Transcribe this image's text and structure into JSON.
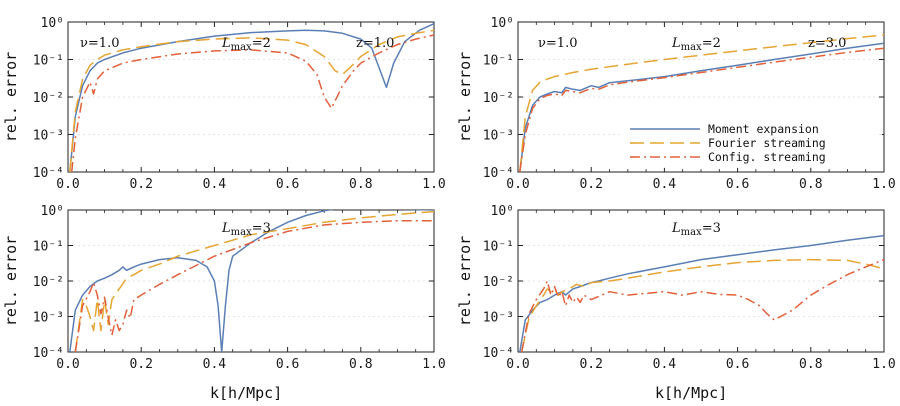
{
  "figure": {
    "xlabel": "k[h/Mpc]",
    "ylabel": "rel. error",
    "colors": {
      "moment": "#5b7fb5",
      "fourier": "#e6a532",
      "config": "#e2603a"
    }
  },
  "chart_data": [
    {
      "type": "line",
      "panel": "top-left",
      "xlim": [
        0.0,
        1.0
      ],
      "ylim": [
        0.0001,
        1
      ],
      "yscale": "log",
      "grid": true,
      "xticks": [
        "0.0",
        "0.2",
        "0.4",
        "0.6",
        "0.8",
        "1.0"
      ],
      "yticks": [
        "10⁻⁴",
        "10⁻³",
        "10⁻²",
        "10⁻¹",
        "10⁰"
      ],
      "ylabel": "rel. error",
      "xlabel": "",
      "annotations": [
        "ν=1.0",
        "Lmax=2",
        "z=1.0"
      ],
      "series": [
        {
          "name": "Moment expansion",
          "style": "solid",
          "color": "#5b7fb5",
          "x": [
            0.005,
            0.02,
            0.04,
            0.06,
            0.08,
            0.1,
            0.15,
            0.2,
            0.3,
            0.4,
            0.5,
            0.6,
            0.65,
            0.7,
            0.75,
            0.8,
            0.83,
            0.85,
            0.87,
            0.89,
            0.92,
            0.96,
            1.0
          ],
          "y": [
            0.0001,
            0.003,
            0.02,
            0.05,
            0.08,
            0.1,
            0.15,
            0.2,
            0.3,
            0.42,
            0.52,
            0.58,
            0.6,
            0.58,
            0.5,
            0.35,
            0.2,
            0.06,
            0.018,
            0.08,
            0.3,
            0.6,
            0.9
          ]
        },
        {
          "name": "Fourier streaming",
          "style": "dashed",
          "color": "#e6a532",
          "x": [
            0.005,
            0.02,
            0.04,
            0.06,
            0.08,
            0.1,
            0.15,
            0.2,
            0.3,
            0.4,
            0.5,
            0.6,
            0.65,
            0.7,
            0.73,
            0.75,
            0.77,
            0.8,
            0.85,
            0.9,
            0.95,
            1.0
          ],
          "y": [
            0.0001,
            0.004,
            0.03,
            0.07,
            0.1,
            0.13,
            0.18,
            0.22,
            0.3,
            0.35,
            0.38,
            0.33,
            0.25,
            0.12,
            0.05,
            0.04,
            0.06,
            0.12,
            0.25,
            0.4,
            0.5,
            0.6
          ]
        },
        {
          "name": "Config. streaming",
          "style": "dashdot",
          "color": "#e2603a",
          "x": [
            0.01,
            0.02,
            0.04,
            0.06,
            0.07,
            0.08,
            0.1,
            0.15,
            0.2,
            0.3,
            0.4,
            0.5,
            0.6,
            0.65,
            0.68,
            0.7,
            0.72,
            0.73,
            0.75,
            0.78,
            0.8,
            0.85,
            0.9,
            0.95,
            1.0
          ],
          "y": [
            0.0001,
            0.0008,
            0.01,
            0.025,
            0.012,
            0.03,
            0.05,
            0.08,
            0.1,
            0.14,
            0.17,
            0.18,
            0.15,
            0.09,
            0.04,
            0.01,
            0.005,
            0.008,
            0.02,
            0.05,
            0.08,
            0.15,
            0.25,
            0.35,
            0.45
          ]
        }
      ]
    },
    {
      "type": "line",
      "panel": "top-right",
      "xlim": [
        0.0,
        1.0
      ],
      "ylim": [
        0.0001,
        1
      ],
      "yscale": "log",
      "grid": true,
      "xticks": [
        "0.0",
        "0.2",
        "0.4",
        "0.6",
        "0.8",
        "1.0"
      ],
      "yticks": [
        "10⁻⁴",
        "10⁻³",
        "10⁻²",
        "10⁻¹",
        "10⁰"
      ],
      "ylabel": "rel. error",
      "xlabel": "",
      "annotations": [
        "ν=1.0",
        "Lmax=2",
        "z=3.0"
      ],
      "legend": {
        "placement": "bottom-right",
        "entries": [
          "Moment expansion",
          "Fourier streaming",
          "Config. streaming"
        ]
      },
      "series": [
        {
          "name": "Moment expansion",
          "style": "solid",
          "color": "#5b7fb5",
          "x": [
            0.005,
            0.02,
            0.04,
            0.06,
            0.08,
            0.1,
            0.12,
            0.13,
            0.15,
            0.17,
            0.2,
            0.22,
            0.25,
            0.3,
            0.4,
            0.5,
            0.6,
            0.7,
            0.8,
            0.9,
            1.0
          ],
          "y": [
            0.0001,
            0.0015,
            0.006,
            0.01,
            0.012,
            0.014,
            0.013,
            0.018,
            0.016,
            0.015,
            0.02,
            0.018,
            0.024,
            0.027,
            0.035,
            0.05,
            0.07,
            0.1,
            0.14,
            0.2,
            0.27
          ]
        },
        {
          "name": "Fourier streaming",
          "style": "dashed",
          "color": "#e6a532",
          "x": [
            0.005,
            0.02,
            0.04,
            0.06,
            0.08,
            0.1,
            0.15,
            0.2,
            0.3,
            0.4,
            0.5,
            0.6,
            0.7,
            0.8,
            0.9,
            1.0
          ],
          "y": [
            0.0001,
            0.003,
            0.015,
            0.025,
            0.03,
            0.035,
            0.045,
            0.055,
            0.075,
            0.1,
            0.13,
            0.17,
            0.22,
            0.28,
            0.36,
            0.45
          ]
        },
        {
          "name": "Config. streaming",
          "style": "dashdot",
          "color": "#e2603a",
          "x": [
            0.005,
            0.02,
            0.04,
            0.06,
            0.08,
            0.1,
            0.12,
            0.13,
            0.15,
            0.17,
            0.2,
            0.22,
            0.25,
            0.3,
            0.4,
            0.5,
            0.6,
            0.7,
            0.8,
            0.9,
            1.0
          ],
          "y": [
            0.0001,
            0.001,
            0.005,
            0.009,
            0.011,
            0.012,
            0.011,
            0.015,
            0.014,
            0.013,
            0.017,
            0.016,
            0.021,
            0.025,
            0.033,
            0.045,
            0.062,
            0.085,
            0.115,
            0.155,
            0.2
          ]
        }
      ]
    },
    {
      "type": "line",
      "panel": "bottom-left",
      "xlim": [
        0.0,
        1.0
      ],
      "ylim": [
        0.0001,
        1
      ],
      "yscale": "log",
      "grid": true,
      "xticks": [
        "0.0",
        "0.2",
        "0.4",
        "0.6",
        "0.8",
        "1.0"
      ],
      "yticks": [
        "10⁻⁴",
        "10⁻³",
        "10⁻²",
        "10⁻¹",
        "10⁰"
      ],
      "ylabel": "rel. error",
      "xlabel": "k[h/Mpc]",
      "annotations": [
        "Lmax=3"
      ],
      "series": [
        {
          "name": "Moment expansion",
          "style": "solid",
          "color": "#5b7fb5",
          "x": [
            0.005,
            0.02,
            0.04,
            0.06,
            0.08,
            0.1,
            0.12,
            0.14,
            0.15,
            0.16,
            0.18,
            0.2,
            0.25,
            0.3,
            0.35,
            0.38,
            0.4,
            0.41,
            0.42,
            0.43,
            0.44,
            0.45,
            0.5,
            0.55,
            0.6,
            0.65,
            0.7,
            0.74,
            0.8,
            0.9,
            1.0
          ],
          "y": [
            0.0001,
            0.0015,
            0.004,
            0.007,
            0.01,
            0.012,
            0.015,
            0.02,
            0.025,
            0.02,
            0.025,
            0.03,
            0.04,
            0.045,
            0.038,
            0.025,
            0.01,
            0.002,
            0.0001,
            0.002,
            0.02,
            0.05,
            0.12,
            0.25,
            0.45,
            0.7,
            0.95,
            1.1,
            1.1,
            1.05,
            1.0
          ]
        },
        {
          "name": "Fourier streaming",
          "style": "dashed",
          "color": "#e6a532",
          "x": [
            0.02,
            0.04,
            0.05,
            0.06,
            0.07,
            0.08,
            0.09,
            0.1,
            0.11,
            0.12,
            0.14,
            0.16,
            0.18,
            0.2,
            0.25,
            0.3,
            0.4,
            0.5,
            0.6,
            0.7,
            0.8,
            0.9,
            1.0
          ],
          "y": [
            0.0001,
            0.003,
            0.002,
            0.001,
            0.0004,
            0.003,
            0.0004,
            0.003,
            0.0006,
            0.003,
            0.006,
            0.012,
            0.015,
            0.02,
            0.03,
            0.05,
            0.1,
            0.2,
            0.3,
            0.45,
            0.6,
            0.75,
            0.9
          ]
        },
        {
          "name": "Config. streaming",
          "style": "dashdot",
          "color": "#e2603a",
          "x": [
            0.02,
            0.04,
            0.06,
            0.07,
            0.08,
            0.09,
            0.1,
            0.11,
            0.12,
            0.13,
            0.14,
            0.15,
            0.16,
            0.17,
            0.18,
            0.2,
            0.25,
            0.3,
            0.4,
            0.5,
            0.6,
            0.7,
            0.8,
            0.9,
            1.0
          ],
          "y": [
            0.0001,
            0.002,
            0.005,
            0.009,
            0.004,
            0.0012,
            0.0035,
            0.0009,
            0.0003,
            0.0008,
            0.0004,
            0.0006,
            0.0015,
            0.0009,
            0.003,
            0.004,
            0.008,
            0.015,
            0.05,
            0.12,
            0.25,
            0.38,
            0.45,
            0.5,
            0.5
          ]
        }
      ]
    },
    {
      "type": "line",
      "panel": "bottom-right",
      "xlim": [
        0.0,
        1.0
      ],
      "ylim": [
        0.0001,
        1
      ],
      "yscale": "log",
      "grid": true,
      "xticks": [
        "0.0",
        "0.2",
        "0.4",
        "0.6",
        "0.8",
        "1.0"
      ],
      "yticks": [
        "10⁻⁴",
        "10⁻³",
        "10⁻²",
        "10⁻¹",
        "10⁰"
      ],
      "ylabel": "rel. error",
      "xlabel": "k[h/Mpc]",
      "annotations": [
        "Lmax=3"
      ],
      "series": [
        {
          "name": "Moment expansion",
          "style": "solid",
          "color": "#5b7fb5",
          "x": [
            0.005,
            0.02,
            0.04,
            0.06,
            0.08,
            0.1,
            0.12,
            0.13,
            0.15,
            0.17,
            0.2,
            0.22,
            0.25,
            0.3,
            0.4,
            0.5,
            0.6,
            0.7,
            0.8,
            0.9,
            1.0
          ],
          "y": [
            0.0001,
            0.0008,
            0.0015,
            0.0025,
            0.003,
            0.004,
            0.005,
            0.004,
            0.006,
            0.007,
            0.009,
            0.01,
            0.012,
            0.016,
            0.025,
            0.04,
            0.055,
            0.075,
            0.1,
            0.14,
            0.19
          ]
        },
        {
          "name": "Fourier streaming",
          "style": "dashed",
          "color": "#e6a532",
          "x": [
            0.01,
            0.03,
            0.05,
            0.07,
            0.08,
            0.09,
            0.1,
            0.11,
            0.12,
            0.14,
            0.16,
            0.18,
            0.2,
            0.25,
            0.3,
            0.4,
            0.5,
            0.6,
            0.7,
            0.8,
            0.9,
            0.95,
            1.0
          ],
          "y": [
            0.0001,
            0.0009,
            0.002,
            0.004,
            0.006,
            0.005,
            0.006,
            0.004,
            0.005,
            0.006,
            0.008,
            0.007,
            0.009,
            0.01,
            0.012,
            0.018,
            0.025,
            0.033,
            0.038,
            0.04,
            0.038,
            0.03,
            0.022
          ]
        },
        {
          "name": "Config. streaming",
          "style": "dashdot",
          "color": "#e2603a",
          "x": [
            0.01,
            0.03,
            0.05,
            0.07,
            0.08,
            0.09,
            0.1,
            0.11,
            0.12,
            0.13,
            0.14,
            0.15,
            0.16,
            0.17,
            0.18,
            0.2,
            0.25,
            0.3,
            0.35,
            0.4,
            0.45,
            0.5,
            0.55,
            0.6,
            0.63,
            0.66,
            0.68,
            0.7,
            0.75,
            0.8,
            0.85,
            0.9,
            0.95,
            1.0
          ],
          "y": [
            0.0001,
            0.0012,
            0.003,
            0.006,
            0.01,
            0.004,
            0.007,
            0.0035,
            0.005,
            0.002,
            0.004,
            0.0025,
            0.0035,
            0.0025,
            0.004,
            0.003,
            0.005,
            0.004,
            0.0045,
            0.005,
            0.004,
            0.005,
            0.0042,
            0.004,
            0.003,
            0.002,
            0.0012,
            0.0008,
            0.0015,
            0.004,
            0.008,
            0.015,
            0.025,
            0.04
          ]
        }
      ]
    }
  ]
}
